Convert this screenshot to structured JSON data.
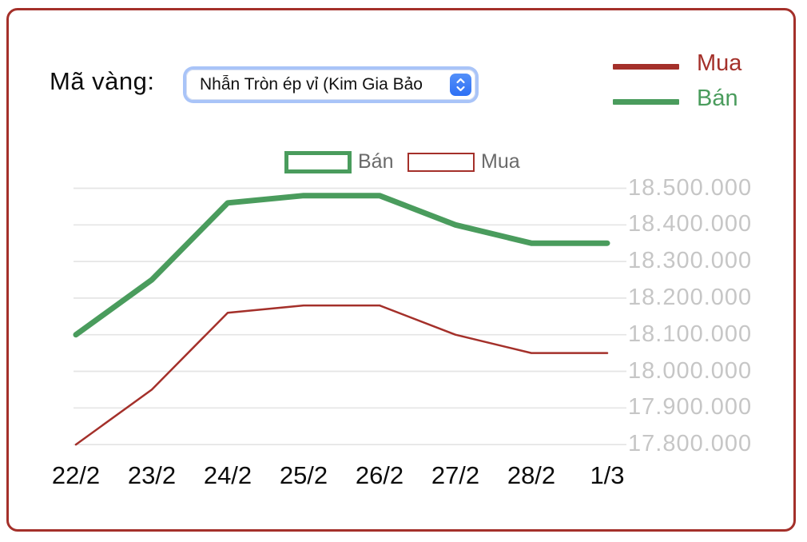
{
  "colors": {
    "accent_red": "#a4302a",
    "accent_green": "#4a9c5d",
    "grid": "#e5e5e5",
    "tick_label": "#c6c6c6",
    "legend_text": "#6a6a6a",
    "select_ring": "#a9c4f8",
    "select_stepper_blue": "#2e70f4"
  },
  "header": {
    "label": "Mã vàng:",
    "select": {
      "value": "Nhẫn Tròn ép vỉ (Kim Gia Bảo",
      "stepper_icon": "up-down-chevrons"
    }
  },
  "legend_right": {
    "items": [
      {
        "label": "Mua",
        "color": "#a4302a"
      },
      {
        "label": "Bán",
        "color": "#4a9c5d"
      }
    ]
  },
  "chart_legend": {
    "items": [
      {
        "label": "Bán",
        "color": "#4a9c5d",
        "swatch": "outlined-box",
        "border_width": 5
      },
      {
        "label": "Mua",
        "color": "#a4302a",
        "swatch": "outlined-box",
        "border_width": 2
      }
    ]
  },
  "chart_data": {
    "type": "line",
    "title": "",
    "xlabel": "",
    "ylabel": "",
    "categories": [
      "22/2",
      "23/2",
      "24/2",
      "25/2",
      "26/2",
      "27/2",
      "28/2",
      "1/3"
    ],
    "series": [
      {
        "name": "Bán",
        "color": "#4a9c5d",
        "stroke_width": 7,
        "values": [
          18100000,
          18250000,
          18460000,
          18480000,
          18480000,
          18400000,
          18350000,
          18350000
        ]
      },
      {
        "name": "Mua",
        "color": "#a4302a",
        "stroke_width": 2.5,
        "values": [
          17800000,
          17950000,
          18160000,
          18180000,
          18180000,
          18100000,
          18050000,
          18050000
        ]
      }
    ],
    "y_axis": {
      "min": 17800000,
      "max": 18500000,
      "step": 100000,
      "position": "right",
      "tick_labels": [
        "18.500.000",
        "18.400.000",
        "18.300.000",
        "18.200.000",
        "18.100.000",
        "18.000.000",
        "17.900.000",
        "17.800.000"
      ]
    },
    "grid": true,
    "legend_position": "top"
  }
}
